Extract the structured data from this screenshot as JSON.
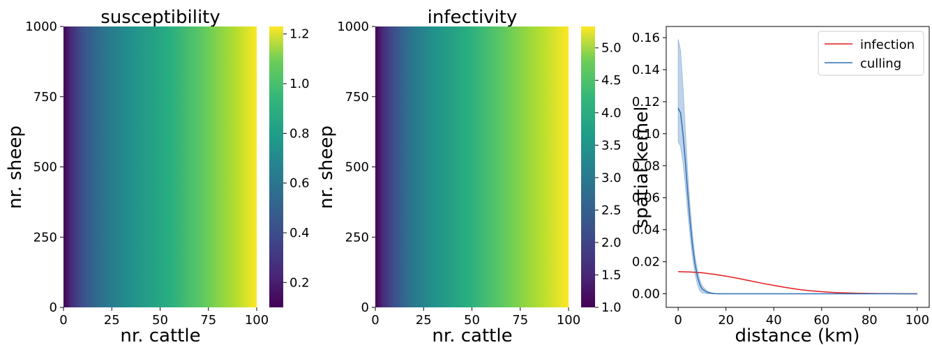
{
  "chart_data": [
    {
      "type": "heatmap",
      "title": "susceptibility",
      "xlabel": "nr. cattle",
      "ylabel": "nr. sheep",
      "xlim": [
        0,
        100
      ],
      "ylim": [
        0,
        1000
      ],
      "xticks": [
        "0",
        "25",
        "50",
        "75",
        "100"
      ],
      "yticks": [
        "0",
        "250",
        "500",
        "750",
        "1000"
      ],
      "colorscale": "viridis",
      "colorbar": {
        "range": [
          0.1,
          1.23
        ],
        "ticks": [
          "0.2",
          "0.4",
          "0.6",
          "0.8",
          "1.0",
          "1.2"
        ]
      },
      "values_note_free": true,
      "field": {
        "min_at_x0_y0": 0.1,
        "max_at_x100_y1000": 1.23
      }
    },
    {
      "type": "heatmap",
      "title": "infectivity",
      "xlabel": "nr. cattle",
      "ylabel": "nr. sheep",
      "xlim": [
        0,
        100
      ],
      "ylim": [
        0,
        1000
      ],
      "xticks": [
        "0",
        "25",
        "50",
        "75",
        "100"
      ],
      "yticks": [
        "0",
        "250",
        "500",
        "750",
        "1000"
      ],
      "colorscale": "viridis",
      "colorbar": {
        "range": [
          1.0,
          5.33
        ],
        "ticks": [
          "1.0",
          "1.5",
          "2.0",
          "2.5",
          "3.0",
          "3.5",
          "4.0",
          "4.5",
          "5.0"
        ]
      },
      "field": {
        "min_at_x0_y0": 1.0,
        "max_at_x100_y1000": 5.33
      }
    },
    {
      "type": "line",
      "title": "",
      "xlabel": "distance (km)",
      "ylabel": "spatial kernel",
      "xlim": [
        -5,
        105
      ],
      "ylim": [
        -0.0085,
        0.167
      ],
      "xticks": [
        "0",
        "20",
        "40",
        "60",
        "80",
        "100"
      ],
      "yticks": [
        "0.00",
        "0.02",
        "0.04",
        "0.06",
        "0.08",
        "0.10",
        "0.12",
        "0.14",
        "0.16"
      ],
      "legend": {
        "placement": "top-right"
      },
      "series": [
        {
          "name": "infection",
          "color": "#e31a1c",
          "x": [
            0,
            5,
            10,
            15,
            20,
            25,
            30,
            35,
            40,
            45,
            50,
            55,
            60,
            65,
            70,
            75,
            80,
            85,
            90,
            95,
            100
          ],
          "y": [
            0.0138,
            0.0136,
            0.0131,
            0.0122,
            0.011,
            0.0096,
            0.0081,
            0.0066,
            0.0052,
            0.0039,
            0.0028,
            0.0019,
            0.0013,
            0.0008,
            0.0005,
            0.0003,
            0.0002,
            0.0001,
            0.0001,
            0.0,
            0.0
          ]
        },
        {
          "name": "culling",
          "color": "#2f6fb5",
          "x": [
            0,
            1,
            2,
            3,
            4,
            5,
            6,
            7,
            8,
            9,
            10,
            12,
            14,
            16,
            20,
            30,
            50,
            100
          ],
          "y": [
            0.116,
            0.113,
            0.1,
            0.083,
            0.063,
            0.045,
            0.03,
            0.019,
            0.011,
            0.006,
            0.003,
            0.001,
            0.0003,
            0.0,
            0.0,
            0.0,
            0.0,
            0.0
          ],
          "band_upper": [
            0.159,
            0.152,
            0.13,
            0.103,
            0.076,
            0.054,
            0.037,
            0.024,
            0.015,
            0.009,
            0.005,
            0.0018,
            0.0006,
            0.0001,
            0.0,
            0.0,
            0.0,
            0.0
          ],
          "band_lower": [
            0.095,
            0.092,
            0.082,
            0.068,
            0.051,
            0.036,
            0.023,
            0.013,
            0.006,
            0.002,
            0.0005,
            0.0,
            0.0,
            0.0,
            0.0,
            0.0,
            0.0,
            0.0
          ]
        }
      ]
    }
  ]
}
